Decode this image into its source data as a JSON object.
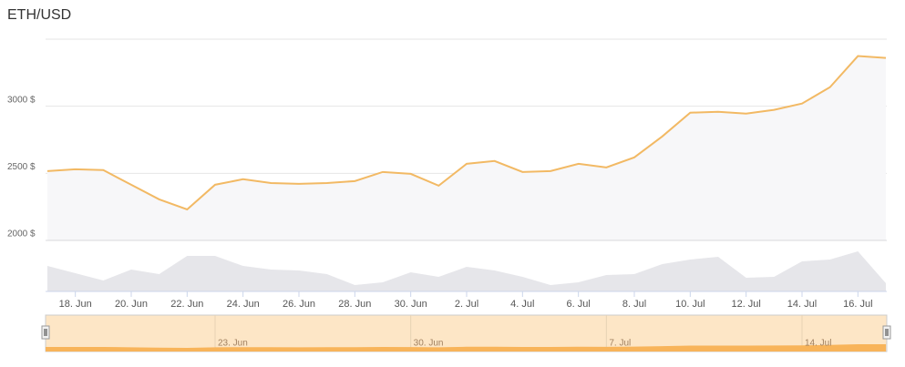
{
  "chart_data": {
    "type": "line",
    "title": "ETH/USD",
    "categories": [
      null,
      "18. Jun",
      null,
      "20. Jun",
      null,
      "22. Jun",
      null,
      "24. Jun",
      null,
      "26. Jun",
      null,
      "28. Jun",
      null,
      "30. Jun",
      null,
      "2. Jul",
      null,
      "4. Jul",
      null,
      "6. Jul",
      null,
      "8. Jul",
      null,
      "10. Jul",
      null,
      "12. Jul",
      null,
      "14. Jul",
      null,
      "16. Jul",
      null
    ],
    "series": [
      {
        "color": "#f2b964",
        "values": [
          2517,
          2530,
          2524,
          2415,
          2306,
          2231,
          2415,
          2456,
          2428,
          2422,
          2428,
          2442,
          2510,
          2496,
          2408,
          2571,
          2592,
          2510,
          2517,
          2571,
          2544,
          2619,
          2775,
          2952,
          2959,
          2945,
          2973,
          3020,
          3142,
          3374,
          3360
        ]
      }
    ],
    "ylim": [
      2000,
      3500
    ],
    "yticks": [
      {
        "value": 2000,
        "label": "2000 $"
      },
      {
        "value": 2500,
        "label": "2500 $"
      },
      {
        "value": 3000,
        "label": "3000 $"
      }
    ],
    "grid": true,
    "volume": {
      "color": "#e6e6ea",
      "values": [
        28,
        20,
        12,
        24,
        19,
        39,
        39,
        28,
        24,
        23,
        19,
        7,
        10,
        21,
        16,
        27,
        23,
        16,
        7,
        10,
        18,
        19,
        30,
        35,
        38,
        15,
        16,
        33,
        35,
        44,
        9
      ],
      "ylim": [
        0,
        56
      ]
    },
    "navigator": {
      "color": "#f8b45a",
      "background": "#fde6c6",
      "xticks": [
        {
          "value": 6,
          "label": "23. Jun"
        },
        {
          "value": 13,
          "label": "30. Jun"
        },
        {
          "value": 20,
          "label": "7. Jul"
        },
        {
          "value": 27,
          "label": "14. Jul"
        }
      ]
    }
  }
}
